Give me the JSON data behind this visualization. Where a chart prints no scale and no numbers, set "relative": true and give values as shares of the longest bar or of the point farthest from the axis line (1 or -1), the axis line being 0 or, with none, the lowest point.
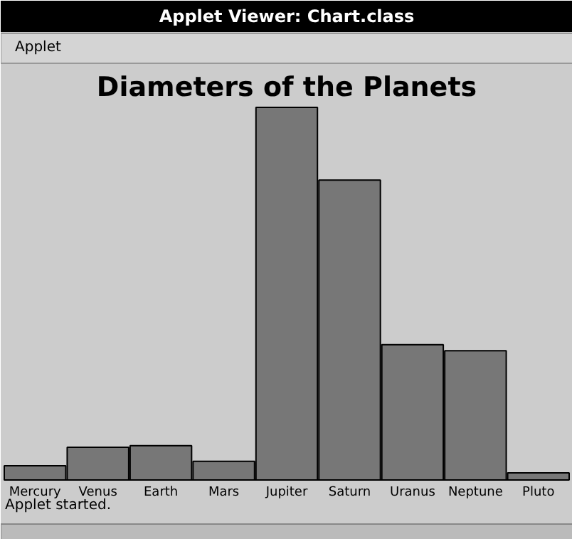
{
  "chart_data": {
    "type": "bar",
    "title": "Diameters of the Planets",
    "relative": true,
    "categories": [
      "Mercury",
      "Venus",
      "Earth",
      "Mars",
      "Jupiter",
      "Saturn",
      "Uranus",
      "Neptune",
      "Pluto"
    ],
    "values": [
      0.038,
      0.088,
      0.092,
      0.05,
      1,
      0.805,
      0.363,
      0.347,
      0.019
    ],
    "color": "#777777",
    "annotations": [
      "Applet Viewer: Chart.class",
      "Applet",
      "Applet started."
    ]
  }
}
